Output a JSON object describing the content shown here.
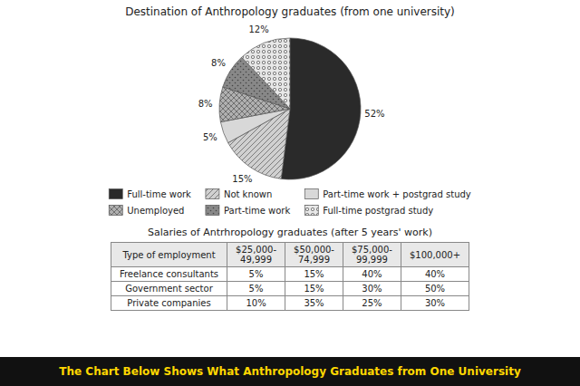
{
  "chart_data": [
    {
      "type": "pie",
      "title": "Destination of Anthropology graduates (from one university)",
      "categories": [
        "Full-time work",
        "Not known",
        "Part-time work + postgrad study",
        "Unemployed",
        "Part-time work",
        "Full-time postgrad study"
      ],
      "values": [
        52,
        15,
        5,
        8,
        8,
        12
      ],
      "value_labels": [
        "52%",
        "15%",
        "5%",
        "8%",
        "8%",
        "12%"
      ],
      "colors": [
        "#2a2a2a",
        "#d0d0d0",
        "#d8d8d8",
        "#b0b0b0",
        "#888888",
        "#e8e8e8"
      ],
      "data_labels": true,
      "legend": "bottom"
    },
    {
      "type": "table",
      "title": "Salaries of Antrhropology graduates (after 5 years' work)",
      "x_label": "Type of employment",
      "categories": [
        "Freelance consultants",
        "Government sector",
        "Private companies"
      ],
      "series": [
        {
          "name": "$25,000-\n49,999",
          "values": [
            5,
            5,
            10
          ],
          "value_labels": [
            "5%",
            "5%",
            "10%"
          ]
        },
        {
          "name": "$50,000-\n74,999",
          "values": [
            15,
            15,
            35
          ],
          "value_labels": [
            "15%",
            "15%",
            "35%"
          ]
        },
        {
          "name": "$75,000-\n99,999",
          "values": [
            40,
            30,
            25
          ],
          "value_labels": [
            "40%",
            "30%",
            "25%"
          ]
        },
        {
          "name": "$100,000+",
          "values": [
            40,
            50,
            30
          ],
          "value_labels": [
            "40%",
            "50%",
            "30%"
          ]
        }
      ]
    },
    {
      "type": "banner",
      "title": "The Chart Below Shows What Anthropology Graduates from One University",
      "colors": [
        "#111111",
        "#FFD700"
      ]
    }
  ]
}
